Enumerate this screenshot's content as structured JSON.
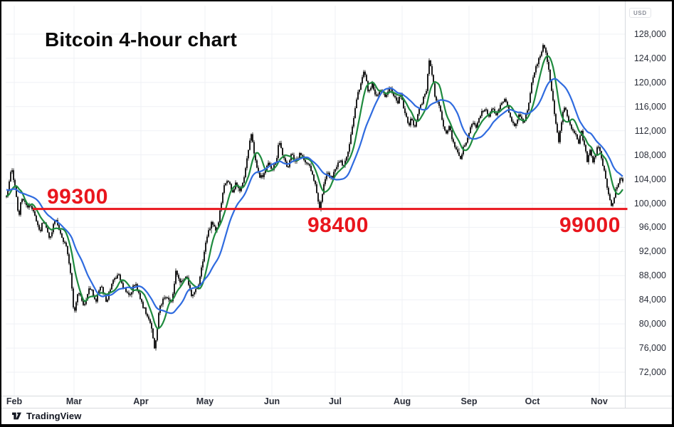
{
  "window": {
    "background": "#ffffff",
    "frame_border": "#000000"
  },
  "title": "Bitcoin 4-hour chart",
  "price_axis": {
    "unit_label": "USD",
    "tick_labels": [
      "128,000",
      "124,000",
      "120,000",
      "116,000",
      "112,000",
      "108,000",
      "104,000",
      "100,000",
      "96,000",
      "92,000",
      "88,000",
      "84,000",
      "80,000",
      "76,000",
      "72,000"
    ]
  },
  "time_axis": {
    "labels": [
      "Feb",
      "Mar",
      "Apr",
      "May",
      "Jun",
      "Jul",
      "Aug",
      "Sep",
      "Oct",
      "Nov"
    ],
    "positions": [
      0.0138,
      0.1103,
      0.2184,
      0.3218,
      0.4299,
      0.5322,
      0.6402,
      0.7483,
      0.8506,
      0.9586
    ]
  },
  "branding": {
    "name": "TradingView"
  },
  "chart_data": {
    "type": "candlestick",
    "instrument": "Bitcoin",
    "interval": "4-hour",
    "currency": "USD",
    "title": "Bitcoin 4-hour chart",
    "grid": true,
    "legend_position": "none",
    "candle_color": "#131313",
    "seed": 11,
    "y_axis": {
      "min": 72000,
      "max": 128000,
      "tick_step": 4000
    },
    "x_axis_months": [
      "Feb",
      "Mar",
      "Apr",
      "May",
      "Jun",
      "Jul",
      "Aug",
      "Sep",
      "Oct",
      "Nov"
    ],
    "support_line": {
      "price": 99050,
      "color": "#e9161d",
      "t_start": 0.0437,
      "t_end": 1.004,
      "labels": [
        {
          "text": "99300",
          "t": 0.0667,
          "side": "above"
        },
        {
          "text": "98400",
          "t": 0.4874,
          "side": "below"
        },
        {
          "text": "99000",
          "t": 0.8943,
          "side": "below"
        }
      ]
    },
    "overlays": [
      {
        "name": "fast moving average",
        "type": "sma",
        "window": 9,
        "color": "#1f8b3e"
      },
      {
        "name": "slow moving average",
        "type": "sma",
        "window": 22,
        "color": "#2f6bdf"
      }
    ],
    "price_path": [
      [
        0.0,
        100500
      ],
      [
        0.005,
        103000
      ],
      [
        0.009,
        106000
      ],
      [
        0.014,
        103500
      ],
      [
        0.021,
        97500
      ],
      [
        0.025,
        101000
      ],
      [
        0.032,
        99800
      ],
      [
        0.041,
        99500
      ],
      [
        0.046,
        98200
      ],
      [
        0.055,
        95500
      ],
      [
        0.062,
        97000
      ],
      [
        0.071,
        94000
      ],
      [
        0.08,
        97500
      ],
      [
        0.09,
        94500
      ],
      [
        0.099,
        92500
      ],
      [
        0.106,
        87000
      ],
      [
        0.11,
        81500
      ],
      [
        0.117,
        85500
      ],
      [
        0.126,
        83000
      ],
      [
        0.136,
        86200
      ],
      [
        0.145,
        83800
      ],
      [
        0.154,
        86500
      ],
      [
        0.163,
        83500
      ],
      [
        0.172,
        87200
      ],
      [
        0.182,
        88200
      ],
      [
        0.191,
        85800
      ],
      [
        0.2,
        85000
      ],
      [
        0.209,
        86800
      ],
      [
        0.218,
        84200
      ],
      [
        0.228,
        81200
      ],
      [
        0.234,
        80200
      ],
      [
        0.241,
        75500
      ],
      [
        0.248,
        82500
      ],
      [
        0.257,
        84800
      ],
      [
        0.267,
        83200
      ],
      [
        0.275,
        88800
      ],
      [
        0.283,
        86800
      ],
      [
        0.292,
        87800
      ],
      [
        0.301,
        84600
      ],
      [
        0.31,
        86000
      ],
      [
        0.32,
        91500
      ],
      [
        0.326,
        95000
      ],
      [
        0.333,
        96800
      ],
      [
        0.34,
        95200
      ],
      [
        0.347,
        99000
      ],
      [
        0.352,
        102800
      ],
      [
        0.359,
        103800
      ],
      [
        0.366,
        101800
      ],
      [
        0.372,
        103200
      ],
      [
        0.379,
        102200
      ],
      [
        0.386,
        105000
      ],
      [
        0.393,
        109500
      ],
      [
        0.397,
        111400
      ],
      [
        0.402,
        107600
      ],
      [
        0.409,
        104800
      ],
      [
        0.416,
        104200
      ],
      [
        0.423,
        106800
      ],
      [
        0.43,
        105600
      ],
      [
        0.437,
        107200
      ],
      [
        0.441,
        110300
      ],
      [
        0.448,
        107600
      ],
      [
        0.455,
        105600
      ],
      [
        0.462,
        108200
      ],
      [
        0.469,
        107000
      ],
      [
        0.476,
        108600
      ],
      [
        0.483,
        107000
      ],
      [
        0.49,
        106400
      ],
      [
        0.497,
        104400
      ],
      [
        0.502,
        101800
      ],
      [
        0.507,
        99000
      ],
      [
        0.513,
        102800
      ],
      [
        0.518,
        105000
      ],
      [
        0.526,
        104200
      ],
      [
        0.533,
        105800
      ],
      [
        0.54,
        107000
      ],
      [
        0.547,
        106200
      ],
      [
        0.554,
        109000
      ],
      [
        0.561,
        113500
      ],
      [
        0.568,
        118000
      ],
      [
        0.575,
        120000
      ],
      [
        0.579,
        122400
      ],
      [
        0.585,
        118600
      ],
      [
        0.592,
        119900
      ],
      [
        0.599,
        117600
      ],
      [
        0.606,
        119000
      ],
      [
        0.613,
        117200
      ],
      [
        0.62,
        119300
      ],
      [
        0.626,
        118100
      ],
      [
        0.633,
        116600
      ],
      [
        0.638,
        117900
      ],
      [
        0.644,
        115400
      ],
      [
        0.651,
        112800
      ],
      [
        0.655,
        114200
      ],
      [
        0.66,
        112200
      ],
      [
        0.667,
        115600
      ],
      [
        0.674,
        117000
      ],
      [
        0.679,
        118200
      ],
      [
        0.684,
        123800
      ],
      [
        0.689,
        121000
      ],
      [
        0.693,
        117600
      ],
      [
        0.7,
        116200
      ],
      [
        0.705,
        113600
      ],
      [
        0.711,
        111200
      ],
      [
        0.716,
        112900
      ],
      [
        0.721,
        110600
      ],
      [
        0.728,
        108600
      ],
      [
        0.734,
        107300
      ],
      [
        0.741,
        109600
      ],
      [
        0.748,
        111600
      ],
      [
        0.755,
        113600
      ],
      [
        0.76,
        112200
      ],
      [
        0.767,
        114600
      ],
      [
        0.774,
        115900
      ],
      [
        0.78,
        114200
      ],
      [
        0.785,
        115600
      ],
      [
        0.792,
        114600
      ],
      [
        0.799,
        116100
      ],
      [
        0.806,
        117400
      ],
      [
        0.81,
        116100
      ],
      [
        0.815,
        114200
      ],
      [
        0.822,
        112600
      ],
      [
        0.829,
        114900
      ],
      [
        0.836,
        113200
      ],
      [
        0.843,
        115600
      ],
      [
        0.849,
        119600
      ],
      [
        0.856,
        122600
      ],
      [
        0.863,
        124600
      ],
      [
        0.869,
        126300
      ],
      [
        0.875,
        123600
      ],
      [
        0.879,
        120600
      ],
      [
        0.884,
        116600
      ],
      [
        0.889,
        112600
      ],
      [
        0.893,
        110100
      ],
      [
        0.898,
        113600
      ],
      [
        0.902,
        115900
      ],
      [
        0.907,
        114600
      ],
      [
        0.911,
        113100
      ],
      [
        0.918,
        111600
      ],
      [
        0.925,
        110100
      ],
      [
        0.93,
        111900
      ],
      [
        0.934,
        109600
      ],
      [
        0.939,
        107100
      ],
      [
        0.944,
        108900
      ],
      [
        0.948,
        106600
      ],
      [
        0.953,
        108100
      ],
      [
        0.957,
        109900
      ],
      [
        0.962,
        107600
      ],
      [
        0.967,
        105100
      ],
      [
        0.971,
        102600
      ],
      [
        0.976,
        100300
      ],
      [
        0.979,
        99600
      ],
      [
        0.984,
        101600
      ],
      [
        0.989,
        103300
      ],
      [
        0.993,
        103900
      ],
      [
        0.998,
        103100
      ]
    ]
  }
}
